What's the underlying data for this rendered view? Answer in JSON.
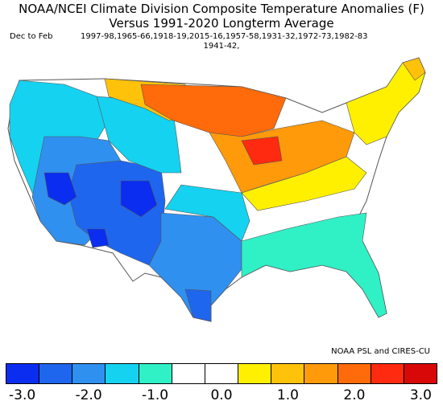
{
  "title_line1": "NOAA/NCEI Climate Division Composite Temperature Anomalies (F)",
  "title_line2": "Versus 1991-2020 Longterm Average",
  "season_label": "Dec to Feb",
  "years_line1": "1997-98,1965-66,1918-19,2015-16,1957-58,1931-32,1972-73,1982-83",
  "years_line2": "1941-42,",
  "credit": "NOAA PSL and CIRES-CU",
  "colorbar": {
    "colors": [
      "#0a2df0",
      "#1f66ee",
      "#2f90f0",
      "#14d2f0",
      "#30f0c6",
      "#ffffff",
      "#ffffff",
      "#fff000",
      "#ffc20a",
      "#ff9a0a",
      "#ff6a0a",
      "#ff2a10",
      "#d80808"
    ],
    "tick_labels": [
      "-3.0",
      "-2.0",
      "-1.0",
      "0.0",
      "1.0",
      "2.0",
      "3.0"
    ]
  },
  "map_regions": [
    {
      "name": "pacific-northwest",
      "color": "#14d2f0"
    },
    {
      "name": "great-basin-southwest",
      "color": "#1f66ee"
    },
    {
      "name": "four-corners",
      "color": "#0a2df0"
    },
    {
      "name": "texas-plains",
      "color": "#2f90f0"
    },
    {
      "name": "upper-midwest",
      "color": "#ff6a0a"
    },
    {
      "name": "great-lakes",
      "color": "#ff9a0a"
    },
    {
      "name": "ohio-valley",
      "color": "#fff000"
    },
    {
      "name": "southeast",
      "color": "#30f0c6"
    },
    {
      "name": "mid-atlantic",
      "color": "#ffffff"
    },
    {
      "name": "northeast",
      "color": "#fff000"
    }
  ]
}
